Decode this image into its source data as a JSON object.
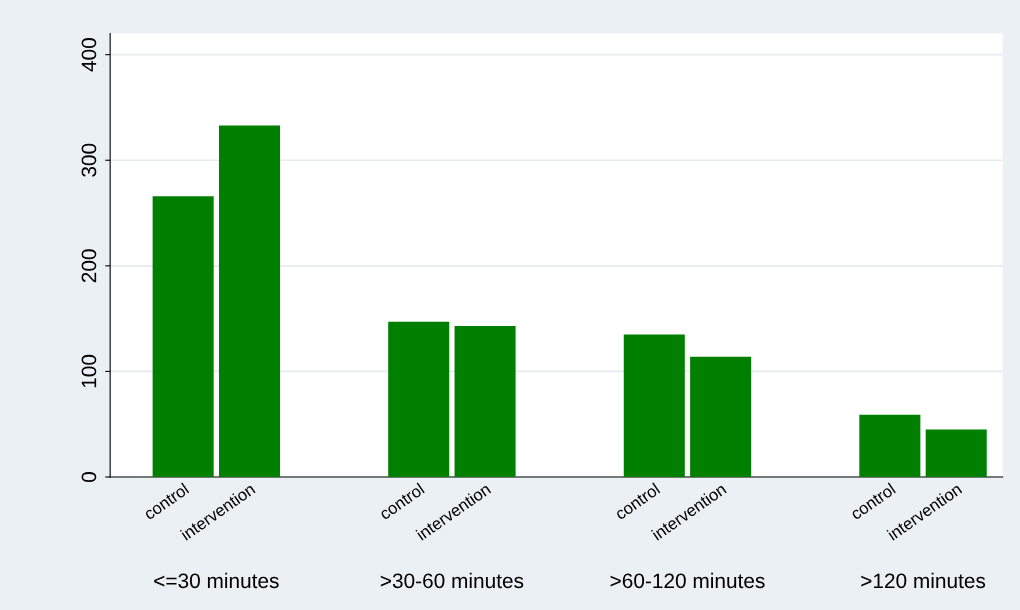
{
  "chart_data": {
    "type": "bar",
    "categories": [
      "control",
      "intervention",
      "control",
      "intervention",
      "control",
      "intervention",
      "control",
      "intervention"
    ],
    "values": [
      266,
      333,
      147,
      143,
      135,
      114,
      59,
      45
    ],
    "color": "#007f00",
    "ylim": [
      0,
      420
    ],
    "yticks": [
      0,
      100,
      200,
      300,
      400
    ],
    "grid": "y",
    "annotations": [
      "<=30 minutes",
      ">30-60 minutes",
      ">60-120 minutes",
      ">120 minutes"
    ]
  }
}
